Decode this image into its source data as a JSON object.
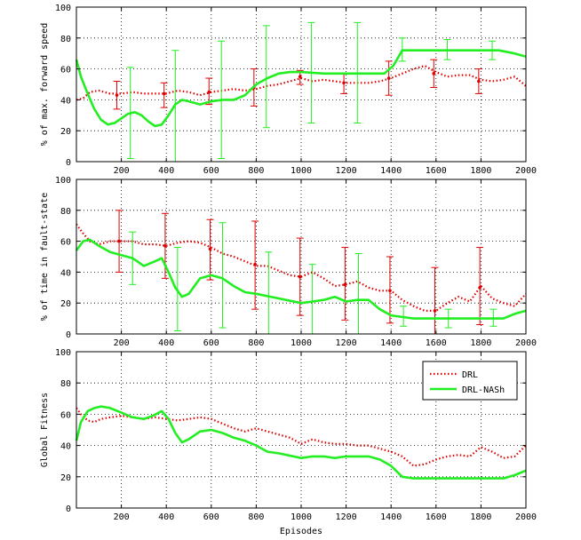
{
  "colors": {
    "drl": "#e00000",
    "nash": "#22ee22",
    "axes": "#000000",
    "grid": "#000000"
  },
  "chart_data": [
    {
      "type": "line",
      "xlabel": "",
      "ylabel": "% of max. forward speed",
      "xlim": [
        0,
        2000
      ],
      "ylim": [
        0,
        100
      ],
      "xticks": [
        200,
        400,
        600,
        800,
        1000,
        1200,
        1400,
        1600,
        1800,
        2000
      ],
      "yticks": [
        0,
        20,
        40,
        60,
        80,
        100
      ],
      "grid": true,
      "series": [
        {
          "name": "DRL",
          "style": "dotted",
          "x": [
            0,
            30,
            60,
            100,
            150,
            200,
            250,
            300,
            350,
            400,
            450,
            500,
            550,
            600,
            650,
            700,
            750,
            800,
            850,
            900,
            950,
            1000,
            1050,
            1100,
            1150,
            1200,
            1250,
            1300,
            1350,
            1400,
            1450,
            1500,
            1550,
            1600,
            1650,
            1700,
            1750,
            1800,
            1850,
            1900,
            1950,
            2000
          ],
          "y": [
            40,
            41,
            45,
            46,
            44,
            44,
            45,
            44,
            44,
            44,
            46,
            45,
            43,
            45,
            46,
            47,
            46,
            47,
            49,
            50,
            52,
            54,
            52,
            53,
            52,
            51,
            51,
            51,
            52,
            54,
            57,
            60,
            62,
            58,
            55,
            56,
            56,
            53,
            52,
            53,
            55,
            49
          ],
          "error_bars": [
            {
              "x": 180,
              "y": 43,
              "low": 34,
              "high": 52
            },
            {
              "x": 390,
              "y": 44,
              "low": 35,
              "high": 51
            },
            {
              "x": 590,
              "y": 45,
              "low": 37,
              "high": 54
            },
            {
              "x": 790,
              "y": 48,
              "low": 36,
              "high": 60
            },
            {
              "x": 995,
              "y": 55,
              "low": 50,
              "high": 59
            },
            {
              "x": 1190,
              "y": 51,
              "low": 44,
              "high": 57
            },
            {
              "x": 1390,
              "y": 54,
              "low": 43,
              "high": 65
            },
            {
              "x": 1590,
              "y": 57,
              "low": 48,
              "high": 66
            },
            {
              "x": 1790,
              "y": 52,
              "low": 44,
              "high": 60
            }
          ]
        },
        {
          "name": "DRL-NASh",
          "style": "solid",
          "x": [
            0,
            20,
            50,
            80,
            110,
            140,
            170,
            200,
            230,
            260,
            290,
            320,
            350,
            380,
            410,
            440,
            470,
            500,
            550,
            600,
            650,
            700,
            750,
            800,
            850,
            900,
            950,
            1000,
            1100,
            1200,
            1300,
            1370,
            1410,
            1450,
            1500,
            1600,
            1700,
            1800,
            1880,
            1950,
            2000
          ],
          "y": [
            66,
            55,
            44,
            34,
            27,
            24,
            25,
            28,
            31,
            32,
            30,
            26,
            23,
            24,
            30,
            37,
            40,
            39,
            37,
            39,
            40,
            40,
            43,
            50,
            54,
            57,
            58,
            58,
            57,
            57,
            57,
            57,
            62,
            72,
            72,
            72,
            72,
            72,
            72,
            70,
            68
          ],
          "error_bars": [
            {
              "x": 240,
              "y": 32,
              "low": 2,
              "high": 61
            },
            {
              "x": 440,
              "y": 37,
              "low": 0,
              "high": 72
            },
            {
              "x": 645,
              "y": 40,
              "low": 2,
              "high": 78
            },
            {
              "x": 845,
              "y": 55,
              "low": 22,
              "high": 88
            },
            {
              "x": 1045,
              "y": 57,
              "low": 25,
              "high": 90
            },
            {
              "x": 1250,
              "y": 57,
              "low": 25,
              "high": 90
            },
            {
              "x": 1450,
              "y": 72,
              "low": 65,
              "high": 80
            },
            {
              "x": 1650,
              "y": 72,
              "low": 66,
              "high": 79
            },
            {
              "x": 1850,
              "y": 72,
              "low": 66,
              "high": 78
            }
          ]
        }
      ]
    },
    {
      "type": "line",
      "xlabel": "",
      "ylabel": "% of time in fault-state",
      "xlim": [
        0,
        2000
      ],
      "ylim": [
        0,
        100
      ],
      "xticks": [
        200,
        400,
        600,
        800,
        1000,
        1200,
        1400,
        1600,
        1800,
        2000
      ],
      "yticks": [
        0,
        20,
        40,
        60,
        80,
        100
      ],
      "grid": true,
      "series": [
        {
          "name": "DRL",
          "style": "dotted",
          "x": [
            0,
            30,
            60,
            100,
            150,
            200,
            250,
            300,
            350,
            400,
            450,
            500,
            550,
            600,
            650,
            700,
            750,
            800,
            850,
            900,
            950,
            1000,
            1050,
            1100,
            1150,
            1200,
            1250,
            1300,
            1350,
            1400,
            1450,
            1500,
            1550,
            1600,
            1650,
            1700,
            1750,
            1800,
            1850,
            1900,
            1950,
            2000
          ],
          "y": [
            71,
            65,
            60,
            58,
            60,
            60,
            60,
            58,
            58,
            57,
            59,
            60,
            59,
            56,
            52,
            50,
            47,
            44,
            44,
            41,
            38,
            37,
            40,
            36,
            31,
            32,
            34,
            30,
            28,
            28,
            22,
            18,
            15,
            15,
            20,
            24,
            21,
            31,
            23,
            20,
            18,
            26
          ],
          "error_bars": [
            {
              "x": 190,
              "y": 60,
              "low": 40,
              "high": 80
            },
            {
              "x": 395,
              "y": 57,
              "low": 36,
              "high": 78
            },
            {
              "x": 595,
              "y": 55,
              "low": 35,
              "high": 74
            },
            {
              "x": 795,
              "y": 45,
              "low": 16,
              "high": 73
            },
            {
              "x": 995,
              "y": 37,
              "low": 12,
              "high": 62
            },
            {
              "x": 1195,
              "y": 32,
              "low": 9,
              "high": 56
            },
            {
              "x": 1395,
              "y": 28,
              "low": 7,
              "high": 50
            },
            {
              "x": 1595,
              "y": 15,
              "low": 0,
              "high": 43
            },
            {
              "x": 1795,
              "y": 30,
              "low": 6,
              "high": 56
            }
          ]
        },
        {
          "name": "DRL-NASh",
          "style": "solid",
          "x": [
            0,
            30,
            60,
            100,
            150,
            200,
            250,
            300,
            350,
            380,
            410,
            440,
            470,
            500,
            550,
            600,
            650,
            700,
            750,
            800,
            900,
            1000,
            1050,
            1100,
            1150,
            1200,
            1250,
            1300,
            1350,
            1400,
            1450,
            1500,
            1600,
            1700,
            1800,
            1850,
            1900,
            1950,
            2000
          ],
          "y": [
            54,
            60,
            61,
            57,
            53,
            51,
            49,
            44,
            47,
            49,
            40,
            30,
            24,
            26,
            36,
            38,
            36,
            31,
            27,
            26,
            23,
            20,
            21,
            22,
            24,
            21,
            22,
            22,
            16,
            12,
            11,
            10,
            10,
            10,
            10,
            10,
            10,
            13,
            15
          ],
          "error_bars": [
            {
              "x": 250,
              "y": 49,
              "low": 32,
              "high": 66
            },
            {
              "x": 450,
              "y": 30,
              "low": 2,
              "high": 56
            },
            {
              "x": 650,
              "y": 37,
              "low": 4,
              "high": 72
            },
            {
              "x": 855,
              "y": 26,
              "low": 0,
              "high": 53
            },
            {
              "x": 1050,
              "y": 21,
              "low": 0,
              "high": 45
            },
            {
              "x": 1255,
              "y": 22,
              "low": 0,
              "high": 52
            },
            {
              "x": 1455,
              "y": 11,
              "low": 5,
              "high": 18
            },
            {
              "x": 1655,
              "y": 10,
              "low": 4,
              "high": 16
            },
            {
              "x": 1855,
              "y": 10,
              "low": 5,
              "high": 16
            }
          ]
        }
      ]
    },
    {
      "type": "line",
      "xlabel": "Episodes",
      "ylabel": "Global Fitness",
      "xlim": [
        0,
        2000
      ],
      "ylim": [
        0,
        100
      ],
      "xticks": [
        200,
        400,
        600,
        800,
        1000,
        1200,
        1400,
        1600,
        1800,
        2000
      ],
      "yticks": [
        0,
        20,
        40,
        60,
        80,
        100
      ],
      "grid": true,
      "legend": {
        "position": "top-right",
        "entries": [
          "DRL",
          "DRL-NASh"
        ]
      },
      "series": [
        {
          "name": "DRL",
          "style": "dotted",
          "x": [
            0,
            20,
            50,
            80,
            110,
            150,
            200,
            250,
            300,
            350,
            400,
            450,
            500,
            550,
            600,
            650,
            700,
            750,
            800,
            850,
            900,
            950,
            1000,
            1050,
            1100,
            1150,
            1200,
            1250,
            1300,
            1350,
            1400,
            1450,
            1500,
            1550,
            1600,
            1650,
            1700,
            1750,
            1800,
            1850,
            1900,
            1950,
            2000
          ],
          "y": [
            64,
            60,
            56,
            55,
            57,
            58,
            59,
            58,
            57,
            58,
            57,
            56,
            57,
            58,
            57,
            54,
            51,
            49,
            51,
            49,
            47,
            45,
            41,
            44,
            42,
            41,
            41,
            40,
            40,
            38,
            36,
            33,
            27,
            28,
            31,
            33,
            34,
            33,
            39,
            36,
            32,
            33,
            40
          ],
          "error_bars": []
        },
        {
          "name": "DRL-NASh",
          "style": "solid",
          "x": [
            0,
            20,
            50,
            80,
            110,
            150,
            200,
            250,
            300,
            340,
            380,
            410,
            440,
            470,
            500,
            550,
            600,
            650,
            700,
            750,
            800,
            850,
            900,
            1000,
            1050,
            1100,
            1150,
            1200,
            1250,
            1300,
            1350,
            1400,
            1450,
            1500,
            1600,
            1700,
            1800,
            1900,
            1950,
            2000
          ],
          "y": [
            43,
            55,
            62,
            64,
            65,
            64,
            61,
            58,
            57,
            59,
            62,
            57,
            48,
            42,
            44,
            49,
            50,
            48,
            45,
            43,
            40,
            36,
            35,
            32,
            33,
            33,
            32,
            33,
            33,
            33,
            31,
            27,
            20,
            19,
            19,
            19,
            19,
            19,
            21,
            24
          ],
          "error_bars": []
        }
      ]
    }
  ]
}
